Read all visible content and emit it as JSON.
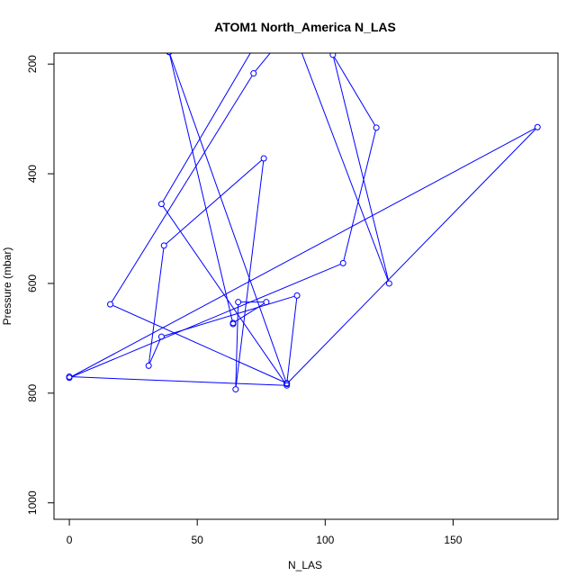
{
  "chart_data": {
    "type": "line",
    "title": "ATOM1 North_America N_LAS",
    "xlabel": "N_LAS",
    "ylabel": "Pressure (mbar)",
    "xlim": [
      -6,
      191
    ],
    "ylim": [
      1030,
      180
    ],
    "y_reversed": true,
    "x_ticks": [
      0,
      50,
      100,
      150
    ],
    "y_ticks": [
      200,
      400,
      600,
      800,
      1000
    ],
    "grid": false,
    "line_color": "#0000ff",
    "marker": "open-circle",
    "series": [
      {
        "values": [
          {
            "x": 0,
            "y": 770
          },
          {
            "x": 85,
            "y": 786
          },
          {
            "x": 36,
            "y": 455
          },
          {
            "x": 83,
            "y": 83
          },
          {
            "x": 125,
            "y": 600
          },
          {
            "x": 103,
            "y": 183
          },
          {
            "x": 120,
            "y": 316
          },
          {
            "x": 107,
            "y": 563
          },
          {
            "x": 0,
            "y": 772
          },
          {
            "x": 183,
            "y": 315
          },
          {
            "x": 85,
            "y": 783
          },
          {
            "x": 89,
            "y": 622
          },
          {
            "x": 36,
            "y": 697
          },
          {
            "x": 31,
            "y": 750
          },
          {
            "x": 37,
            "y": 531
          },
          {
            "x": 76,
            "y": 372
          },
          {
            "x": 65,
            "y": 793
          },
          {
            "x": 66,
            "y": 634
          },
          {
            "x": 77,
            "y": 634
          },
          {
            "x": 64,
            "y": 672
          },
          {
            "x": 64,
            "y": 674
          },
          {
            "x": 39,
            "y": 178
          },
          {
            "x": 39,
            "y": 178
          },
          {
            "x": 85,
            "y": 783
          },
          {
            "x": 85,
            "y": 782
          },
          {
            "x": 16,
            "y": 638
          },
          {
            "x": 72,
            "y": 217
          },
          {
            "x": 82,
            "y": 160
          }
        ]
      }
    ]
  }
}
